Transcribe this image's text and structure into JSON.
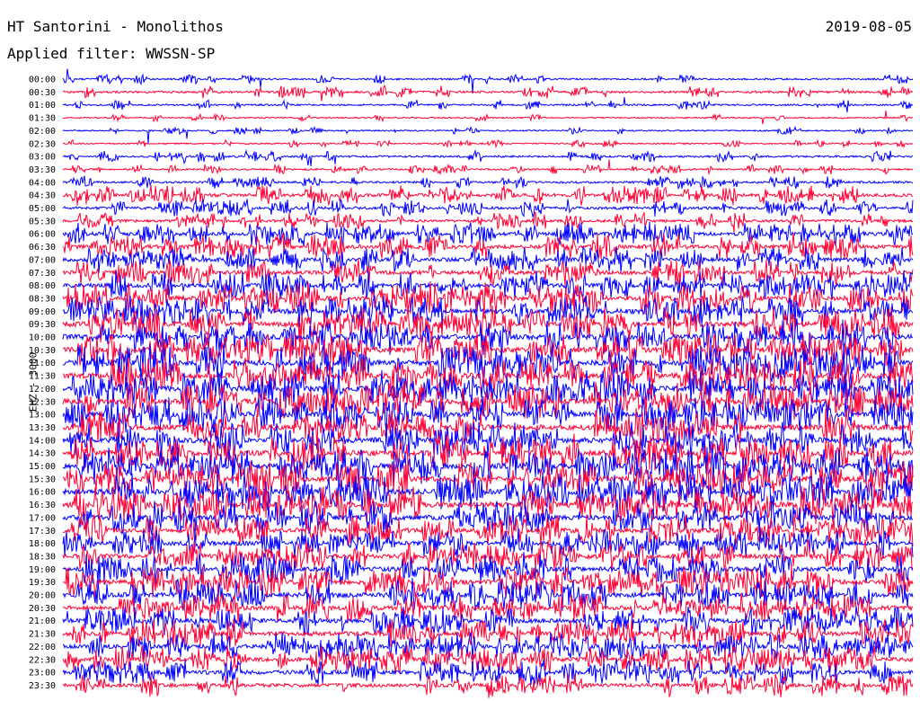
{
  "header": {
    "station": "HT Santorini - Monolithos",
    "date": "2019-08-05",
    "filter_label": "Applied filter:",
    "filter_value": "WWSSN-SP"
  },
  "chart_data": {
    "type": "line",
    "title": "HT Santorini - Monolithos",
    "ylabel": "EHZ - 3000",
    "xlabel": "",
    "grid": false,
    "legend": "none",
    "y_tick_labels": [
      "00:00",
      "00:30",
      "01:00",
      "01:30",
      "02:00",
      "02:30",
      "03:00",
      "03:30",
      "04:00",
      "04:30",
      "05:00",
      "05:30",
      "06:00",
      "06:30",
      "07:00",
      "07:30",
      "08:00",
      "08:30",
      "09:00",
      "09:30",
      "10:00",
      "10:30",
      "11:00",
      "11:30",
      "12:00",
      "12:30",
      "13:00",
      "13:30",
      "14:00",
      "14:30",
      "15:00",
      "15:30",
      "16:00",
      "16:30",
      "17:00",
      "17:30",
      "18:00",
      "18:30",
      "19:00",
      "19:30",
      "20:00",
      "20:30",
      "21:00",
      "21:30",
      "22:00",
      "22:30",
      "23:00",
      "23:30"
    ],
    "series_colors": [
      "#0000ff",
      "#ff0033"
    ],
    "activity_level": [
      0.12,
      0.22,
      0.12,
      0.05,
      0.05,
      0.06,
      0.18,
      0.12,
      0.22,
      0.45,
      0.35,
      0.35,
      0.55,
      0.62,
      0.6,
      0.6,
      0.7,
      0.8,
      0.82,
      0.88,
      0.88,
      0.9,
      0.92,
      0.95,
      0.95,
      0.95,
      0.9,
      0.92,
      0.92,
      0.9,
      0.92,
      0.9,
      0.95,
      0.95,
      0.85,
      0.8,
      0.72,
      0.75,
      0.78,
      0.8,
      0.78,
      0.72,
      0.7,
      0.7,
      0.65,
      0.68,
      0.62,
      0.55
    ]
  }
}
